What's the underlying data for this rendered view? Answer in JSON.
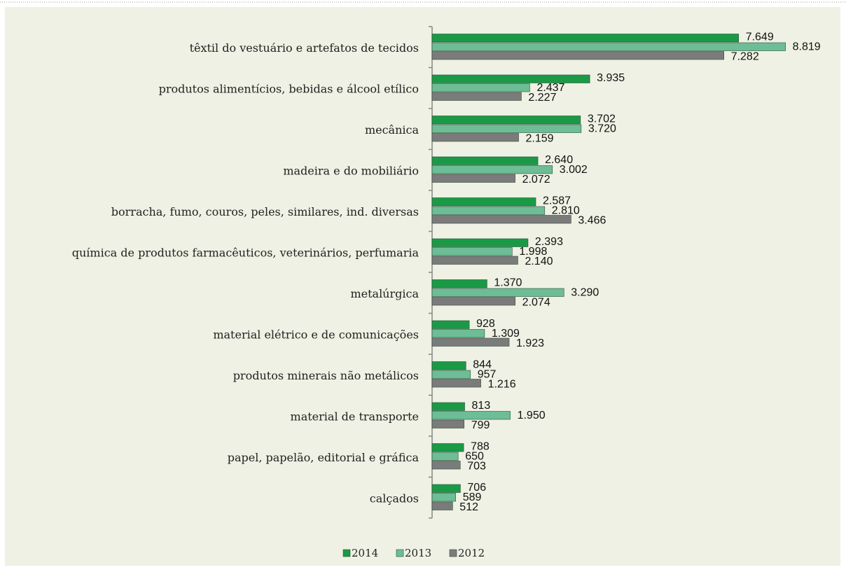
{
  "chart_data": {
    "type": "bar",
    "orientation": "horizontal",
    "categories": [
      "têxtil do vestuário e artefatos de tecidos",
      "produtos alimentícios, bebidas e álcool etílico",
      "mecânica",
      "madeira e do mobiliário",
      "borracha, fumo, couros, peles, similares, ind. diversas",
      "química de produtos farmacêuticos, veterinários, perfumaria",
      "metalúrgica",
      "material elétrico e de comunicações",
      "produtos minerais não metálicos",
      "material de transporte",
      "papel, papelão, editorial e gráfica",
      "calçados"
    ],
    "series": [
      {
        "name": "2014",
        "color": "#1a9a46",
        "values": [
          7649,
          3935,
          3702,
          2640,
          2587,
          2393,
          1370,
          928,
          844,
          813,
          788,
          706
        ],
        "value_labels": [
          "7.649",
          "3.935",
          "3.702",
          "2.640",
          "2.587",
          "2.393",
          "1.370",
          "928",
          "844",
          "813",
          "788",
          "706"
        ]
      },
      {
        "name": "2013",
        "color": "#6dbd96",
        "values": [
          8819,
          2437,
          3720,
          3002,
          2810,
          1998,
          3290,
          1309,
          957,
          1950,
          650,
          589
        ],
        "value_labels": [
          "8.819",
          "2.437",
          "3.720",
          "3.002",
          "2.810",
          "1.998",
          "3.290",
          "1.309",
          "957",
          "1.950",
          "650",
          "589"
        ]
      },
      {
        "name": "2012",
        "color": "#7b7b7b",
        "values": [
          7282,
          2227,
          2159,
          2072,
          3466,
          2140,
          2074,
          1923,
          1216,
          799,
          703,
          512
        ],
        "value_labels": [
          "7.282",
          "2.227",
          "2.159",
          "2.072",
          "3.466",
          "2.140",
          "2.074",
          "1.923",
          "1.216",
          "799",
          "703",
          "512"
        ]
      }
    ],
    "xlim": [
      0,
      9000
    ],
    "legend": "bottom"
  }
}
